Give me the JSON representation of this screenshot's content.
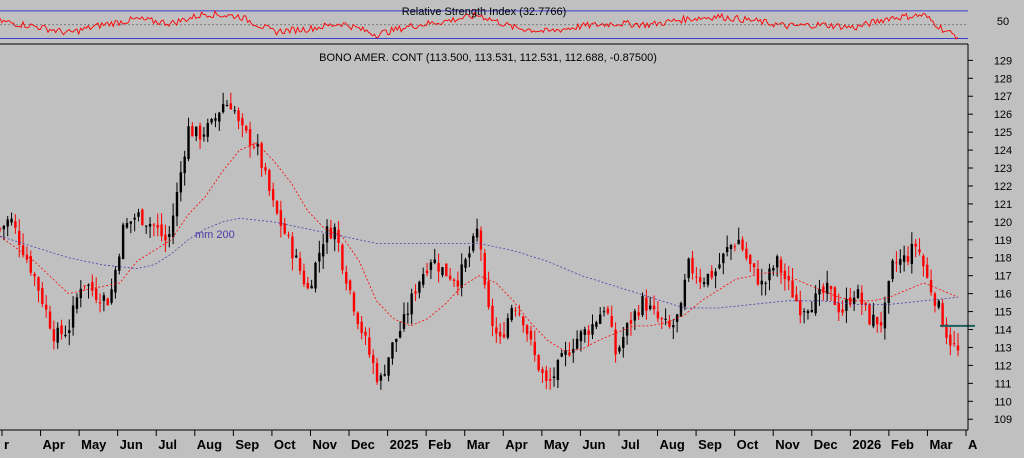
{
  "colors": {
    "background": "#c0c0c0",
    "up_candle": "#000000",
    "down_candle": "#ff0000",
    "ma_short": "#ff0000",
    "ma_200": "#4b3dab",
    "rsi_line": "#ff0000",
    "rsi_band": "#3b3bd6",
    "support_line": "#1e5f5f"
  },
  "rsi_panel": {
    "title": "Relative Strength Index (32.7766)",
    "tick_label": "50",
    "value": 32.7766
  },
  "price_panel": {
    "title": "BONO AMER. CONT (113.500, 113.531, 112.531, 112.688, -0.87500)",
    "ma_label": "mm 200",
    "last_ohlc": {
      "open": 113.5,
      "high": 113.531,
      "low": 112.531,
      "close": 112.688,
      "change": -0.875
    }
  },
  "chart_data": {
    "type": "candlestick",
    "title": "BONO AMER. CONT",
    "ylim": [
      108.4,
      129.8
    ],
    "y_ticks": [
      "109",
      "110",
      "111",
      "112",
      "113",
      "114",
      "115",
      "116",
      "117",
      "118",
      "119",
      "120",
      "121",
      "122",
      "123",
      "124",
      "125",
      "126",
      "127",
      "128",
      "129"
    ],
    "x_tick_labels": [
      "r",
      "Apr",
      "May",
      "Jun",
      "Jul",
      "Aug",
      "Sep",
      "Oct",
      "Nov",
      "Dec",
      "2025",
      "Feb",
      "Mar",
      "Apr",
      "May",
      "Jun",
      "Jul",
      "Aug",
      "Sep",
      "Oct",
      "Nov",
      "Dec",
      "2026",
      "Feb",
      "Mar",
      "A"
    ],
    "support_level": 114.2,
    "close_path": [
      {
        "t": 0,
        "v": 119.6
      },
      {
        "t": 0.3,
        "v": 120.2
      },
      {
        "t": 1,
        "v": 117.0
      },
      {
        "t": 1.6,
        "v": 113.6
      },
      {
        "t": 2,
        "v": 114.0
      },
      {
        "t": 2.4,
        "v": 116.8
      },
      {
        "t": 2.8,
        "v": 116.0
      },
      {
        "t": 3.2,
        "v": 115.6
      },
      {
        "t": 3.6,
        "v": 119.6
      },
      {
        "t": 4,
        "v": 120.4
      },
      {
        "t": 4.5,
        "v": 119.8
      },
      {
        "t": 4.9,
        "v": 118.8
      },
      {
        "t": 5.2,
        "v": 121.8
      },
      {
        "t": 5.5,
        "v": 125.2
      },
      {
        "t": 5.8,
        "v": 124.8
      },
      {
        "t": 6.2,
        "v": 125.4
      },
      {
        "t": 6.5,
        "v": 126.6
      },
      {
        "t": 6.8,
        "v": 126.6
      },
      {
        "t": 7,
        "v": 125.2
      },
      {
        "t": 7.5,
        "v": 124.2
      },
      {
        "t": 8,
        "v": 120.8
      },
      {
        "t": 8.5,
        "v": 118.6
      },
      {
        "t": 9,
        "v": 116.2
      },
      {
        "t": 9.5,
        "v": 119.4
      },
      {
        "t": 9.8,
        "v": 119.6
      },
      {
        "t": 10,
        "v": 117.8
      },
      {
        "t": 10.4,
        "v": 115.0
      },
      {
        "t": 10.8,
        "v": 112.6
      },
      {
        "t": 11.1,
        "v": 111.0
      },
      {
        "t": 11.4,
        "v": 112.8
      },
      {
        "t": 11.8,
        "v": 114.4
      },
      {
        "t": 12.2,
        "v": 116.6
      },
      {
        "t": 12.6,
        "v": 118.0
      },
      {
        "t": 13,
        "v": 117.2
      },
      {
        "t": 13.4,
        "v": 116.8
      },
      {
        "t": 13.8,
        "v": 118.6
      },
      {
        "t": 14,
        "v": 119.8
      },
      {
        "t": 14.2,
        "v": 115.4
      },
      {
        "t": 14.6,
        "v": 113.2
      },
      {
        "t": 15,
        "v": 115.6
      },
      {
        "t": 15.3,
        "v": 114.6
      },
      {
        "t": 15.6,
        "v": 112.6
      },
      {
        "t": 16,
        "v": 110.8
      },
      {
        "t": 16.4,
        "v": 112.2
      },
      {
        "t": 16.8,
        "v": 113.4
      },
      {
        "t": 17.3,
        "v": 114.2
      },
      {
        "t": 17.7,
        "v": 115.4
      },
      {
        "t": 18,
        "v": 112.6
      },
      {
        "t": 18.4,
        "v": 114.4
      },
      {
        "t": 18.8,
        "v": 115.6
      },
      {
        "t": 19.2,
        "v": 114.6
      },
      {
        "t": 19.6,
        "v": 114.0
      },
      {
        "t": 19.9,
        "v": 115.0
      },
      {
        "t": 20.1,
        "v": 117.6
      },
      {
        "t": 20.5,
        "v": 116.8
      },
      {
        "t": 20.9,
        "v": 117.2
      },
      {
        "t": 21.3,
        "v": 118.6
      },
      {
        "t": 21.6,
        "v": 119.0
      },
      {
        "t": 21.9,
        "v": 117.6
      },
      {
        "t": 22.3,
        "v": 116.4
      },
      {
        "t": 22.7,
        "v": 117.8
      },
      {
        "t": 23,
        "v": 116.6
      },
      {
        "t": 23.4,
        "v": 115.2
      },
      {
        "t": 23.8,
        "v": 115.6
      },
      {
        "t": 24.2,
        "v": 116.2
      },
      {
        "t": 24.6,
        "v": 115.0
      },
      {
        "t": 25,
        "v": 116.2
      },
      {
        "t": 25.4,
        "v": 114.6
      },
      {
        "t": 25.8,
        "v": 114.4
      },
      {
        "t": 26.1,
        "v": 117.6
      },
      {
        "t": 26.5,
        "v": 118.0
      },
      {
        "t": 26.8,
        "v": 118.8
      },
      {
        "t": 27.1,
        "v": 116.8
      },
      {
        "t": 27.4,
        "v": 115.4
      },
      {
        "t": 27.7,
        "v": 113.6
      },
      {
        "t": 28.0,
        "v": 112.7
      }
    ],
    "ma_short_path": [
      {
        "t": 0,
        "v": 119.2
      },
      {
        "t": 1,
        "v": 117.8
      },
      {
        "t": 2,
        "v": 116.0
      },
      {
        "t": 3,
        "v": 116.4
      },
      {
        "t": 3.5,
        "v": 116.6
      },
      {
        "t": 4,
        "v": 117.8
      },
      {
        "t": 4.5,
        "v": 118.4
      },
      {
        "t": 5,
        "v": 119.0
      },
      {
        "t": 5.5,
        "v": 120.4
      },
      {
        "t": 6,
        "v": 121.4
      },
      {
        "t": 6.5,
        "v": 122.8
      },
      {
        "t": 7,
        "v": 124.0
      },
      {
        "t": 7.5,
        "v": 124.4
      },
      {
        "t": 8,
        "v": 123.4
      },
      {
        "t": 8.5,
        "v": 122.2
      },
      {
        "t": 9,
        "v": 120.6
      },
      {
        "t": 9.5,
        "v": 119.6
      },
      {
        "t": 10,
        "v": 119.2
      },
      {
        "t": 10.5,
        "v": 117.8
      },
      {
        "t": 11,
        "v": 115.6
      },
      {
        "t": 11.5,
        "v": 114.6
      },
      {
        "t": 12,
        "v": 114.2
      },
      {
        "t": 12.5,
        "v": 114.6
      },
      {
        "t": 13,
        "v": 115.4
      },
      {
        "t": 13.5,
        "v": 116.4
      },
      {
        "t": 14,
        "v": 117.0
      },
      {
        "t": 14.5,
        "v": 116.6
      },
      {
        "t": 15,
        "v": 115.6
      },
      {
        "t": 15.5,
        "v": 114.4
      },
      {
        "t": 16,
        "v": 113.4
      },
      {
        "t": 16.5,
        "v": 112.8
      },
      {
        "t": 17,
        "v": 112.9
      },
      {
        "t": 17.5,
        "v": 113.4
      },
      {
        "t": 18,
        "v": 113.8
      },
      {
        "t": 18.5,
        "v": 114.2
      },
      {
        "t": 19,
        "v": 114.2
      },
      {
        "t": 19.5,
        "v": 114.4
      },
      {
        "t": 20,
        "v": 114.8
      },
      {
        "t": 20.5,
        "v": 115.6
      },
      {
        "t": 21,
        "v": 116.2
      },
      {
        "t": 21.5,
        "v": 116.8
      },
      {
        "t": 22,
        "v": 117.0
      },
      {
        "t": 22.5,
        "v": 117.2
      },
      {
        "t": 23,
        "v": 117.0
      },
      {
        "t": 23.5,
        "v": 116.6
      },
      {
        "t": 24,
        "v": 116.2
      },
      {
        "t": 24.5,
        "v": 115.8
      },
      {
        "t": 25,
        "v": 115.6
      },
      {
        "t": 25.5,
        "v": 115.6
      },
      {
        "t": 26,
        "v": 115.8
      },
      {
        "t": 26.5,
        "v": 116.2
      },
      {
        "t": 27,
        "v": 116.6
      },
      {
        "t": 27.5,
        "v": 116.2
      },
      {
        "t": 28,
        "v": 115.8
      }
    ],
    "ma_200_path": [
      {
        "t": 0,
        "v": 119.2
      },
      {
        "t": 1,
        "v": 118.6
      },
      {
        "t": 2,
        "v": 118.0
      },
      {
        "t": 3,
        "v": 117.6
      },
      {
        "t": 4,
        "v": 117.4
      },
      {
        "t": 4.5,
        "v": 117.6
      },
      {
        "t": 5,
        "v": 118.2
      },
      {
        "t": 5.5,
        "v": 119.0
      },
      {
        "t": 6,
        "v": 119.6
      },
      {
        "t": 6.5,
        "v": 120.0
      },
      {
        "t": 7,
        "v": 120.2
      },
      {
        "t": 8,
        "v": 120.0
      },
      {
        "t": 9,
        "v": 119.6
      },
      {
        "t": 10,
        "v": 119.2
      },
      {
        "t": 11,
        "v": 118.8
      },
      {
        "t": 12,
        "v": 118.8
      },
      {
        "t": 13,
        "v": 118.8
      },
      {
        "t": 14,
        "v": 118.8
      },
      {
        "t": 15,
        "v": 118.4
      },
      {
        "t": 16,
        "v": 117.8
      },
      {
        "t": 17,
        "v": 117.0
      },
      {
        "t": 18,
        "v": 116.4
      },
      {
        "t": 19,
        "v": 115.8
      },
      {
        "t": 20,
        "v": 115.2
      },
      {
        "t": 21,
        "v": 115.2
      },
      {
        "t": 22,
        "v": 115.4
      },
      {
        "t": 23,
        "v": 115.6
      },
      {
        "t": 24,
        "v": 115.6
      },
      {
        "t": 25,
        "v": 115.4
      },
      {
        "t": 26,
        "v": 115.4
      },
      {
        "t": 27,
        "v": 115.6
      },
      {
        "t": 28,
        "v": 115.8
      }
    ],
    "rsi_path": [
      {
        "t": 0,
        "v": 55
      },
      {
        "t": 1,
        "v": 48
      },
      {
        "t": 2,
        "v": 38
      },
      {
        "t": 3,
        "v": 50
      },
      {
        "t": 4,
        "v": 58
      },
      {
        "t": 5,
        "v": 52
      },
      {
        "t": 6,
        "v": 66
      },
      {
        "t": 7,
        "v": 62
      },
      {
        "t": 8,
        "v": 40
      },
      {
        "t": 9,
        "v": 44
      },
      {
        "t": 10,
        "v": 52
      },
      {
        "t": 11,
        "v": 36
      },
      {
        "t": 12,
        "v": 48
      },
      {
        "t": 13,
        "v": 55
      },
      {
        "t": 14,
        "v": 64
      },
      {
        "t": 15,
        "v": 46
      },
      {
        "t": 16,
        "v": 40
      },
      {
        "t": 17,
        "v": 48
      },
      {
        "t": 18,
        "v": 52
      },
      {
        "t": 19,
        "v": 50
      },
      {
        "t": 20,
        "v": 58
      },
      {
        "t": 21,
        "v": 62
      },
      {
        "t": 22,
        "v": 56
      },
      {
        "t": 23,
        "v": 48
      },
      {
        "t": 24,
        "v": 50
      },
      {
        "t": 25,
        "v": 46
      },
      {
        "t": 26,
        "v": 60
      },
      {
        "t": 27,
        "v": 64
      },
      {
        "t": 27.6,
        "v": 42
      },
      {
        "t": 28,
        "v": 32.8
      }
    ],
    "rsi_bands": [
      70,
      30
    ],
    "rsi_ylim": [
      25,
      80
    ]
  }
}
